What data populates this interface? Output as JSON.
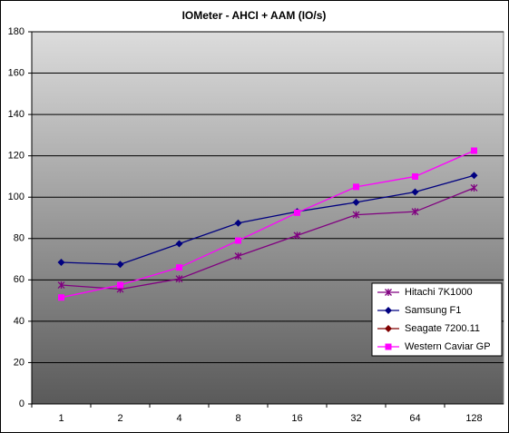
{
  "chart_data": {
    "type": "line",
    "title": "IOMeter - AHCI + AAM (IO/s)",
    "categories": [
      "1",
      "2",
      "4",
      "8",
      "16",
      "32",
      "64",
      "128"
    ],
    "series": [
      {
        "name": "Hitachi 7K1000",
        "color": "#800080",
        "marker": "star",
        "values": [
          57.5,
          55.5,
          60.5,
          71.5,
          81.5,
          91.5,
          93,
          104.5
        ]
      },
      {
        "name": "Samsung F1",
        "color": "#000080",
        "marker": "diamond",
        "values": [
          68.5,
          67.5,
          77.5,
          87.5,
          93,
          97.5,
          102.5,
          110.5
        ]
      },
      {
        "name": "Seagate 7200.11",
        "color": "#800000",
        "marker": "diamond",
        "values": [
          null,
          null,
          null,
          null,
          null,
          null,
          null,
          null
        ]
      },
      {
        "name": "Western Caviar GP",
        "color": "#ff00ff",
        "marker": "square",
        "values": [
          51.5,
          57.5,
          66,
          79,
          92.5,
          105,
          110,
          122.5
        ]
      }
    ],
    "ylim": [
      0,
      180
    ],
    "yticks": [
      0,
      20,
      40,
      60,
      80,
      100,
      120,
      140,
      160,
      180
    ],
    "grid": true,
    "legend": "lower right"
  }
}
